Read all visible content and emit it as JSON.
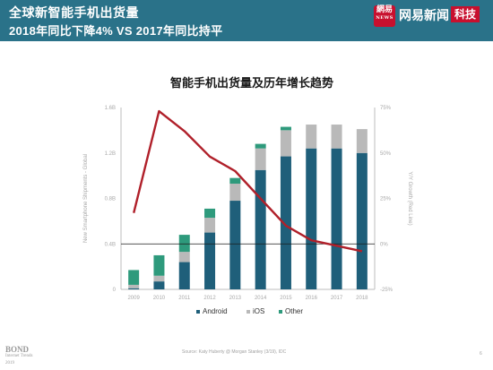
{
  "header": {
    "title": "全球新智能手机出货量",
    "subtitle": "2018年同比下降4% VS 2017年同比持平",
    "brand_logo": "網易",
    "brand_logo_sub": "NEWS",
    "brand_name": "网易新闻",
    "brand_tag": "科技"
  },
  "chart_data": {
    "type": "bar",
    "stacked": true,
    "title": "智能手机出货量及历年增长趋势",
    "categories": [
      "2009",
      "2010",
      "2011",
      "2012",
      "2013",
      "2014",
      "2015",
      "2016",
      "2017",
      "2018"
    ],
    "series": [
      {
        "name": "Android",
        "color": "#1f5f7a",
        "values": [
          0.01,
          0.07,
          0.24,
          0.5,
          0.78,
          1.05,
          1.17,
          1.24,
          1.24,
          1.2
        ]
      },
      {
        "name": "iOS",
        "color": "#b9b9b9",
        "values": [
          0.03,
          0.05,
          0.09,
          0.13,
          0.15,
          0.19,
          0.23,
          0.21,
          0.21,
          0.21
        ]
      },
      {
        "name": "Other",
        "color": "#2e9a7c",
        "values": [
          0.13,
          0.18,
          0.15,
          0.08,
          0.05,
          0.04,
          0.03,
          0.0,
          0.0,
          0.0
        ]
      }
    ],
    "line": {
      "name": "Y/Y Growth",
      "color": "#b0202a",
      "values": [
        17,
        73,
        62,
        48,
        40,
        25,
        10,
        2,
        -1,
        -4
      ]
    },
    "ylabel": "New Smartphone Shipments - Global",
    "y2label": "Y/Y Growth (Red Line)",
    "ylim": [
      0,
      1.6
    ],
    "y_ticks": [
      "0",
      "0.4B",
      "0.8B",
      "1.2B",
      "1.6B"
    ],
    "y2lim": [
      -25,
      75
    ],
    "y2_ticks": [
      "-25%",
      "0%",
      "25%",
      "50%",
      "75%"
    ],
    "legend": [
      "Android",
      "iOS",
      "Other"
    ],
    "legend_position": "bottom"
  },
  "footer": {
    "logo_big": "BOND",
    "logo_small_1": "Internet Trends",
    "logo_small_2": "2019",
    "source": "Source: Katy Huberty @ Morgan Stanley (3/19), IDC",
    "page": "6"
  }
}
